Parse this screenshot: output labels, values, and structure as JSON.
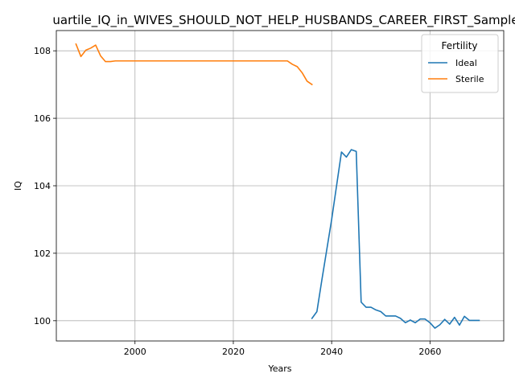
{
  "chart_data": {
    "type": "line",
    "title": "uartile_IQ_in_WIVES_SHOULD_NOT_HELP_HUSBANDS_CAREER_FIRST_Sample",
    "xlabel": "Years",
    "ylabel": "IQ",
    "xlim": [
      1984,
      2075
    ],
    "ylim": [
      99.4,
      108.6
    ],
    "xticks": [
      2000,
      2020,
      2040,
      2060
    ],
    "yticks": [
      100,
      102,
      104,
      106,
      108
    ],
    "grid": true,
    "legend": {
      "title": "Fertility",
      "placement": "top-right"
    },
    "series": [
      {
        "name": "Ideal",
        "color": "#1f77b4",
        "x": [
          2036,
          2037,
          2038,
          2039,
          2040,
          2041,
          2042,
          2043,
          2044,
          2045,
          2046,
          2047,
          2048,
          2049,
          2050,
          2051,
          2052,
          2053,
          2054,
          2055,
          2056,
          2057,
          2058,
          2059,
          2060,
          2061,
          2062,
          2063,
          2064,
          2065,
          2066,
          2067,
          2068,
          2069,
          2070
        ],
        "y": [
          100.07,
          100.27,
          101.2,
          102.1,
          103.0,
          104.0,
          105.0,
          104.85,
          105.07,
          105.02,
          100.55,
          100.4,
          100.4,
          100.32,
          100.27,
          100.14,
          100.14,
          100.14,
          100.07,
          99.94,
          100.02,
          99.94,
          100.05,
          100.05,
          99.94,
          99.78,
          99.88,
          100.04,
          99.9,
          100.1,
          99.87,
          100.13,
          100.01,
          100.01,
          100.01
        ]
      },
      {
        "name": "Sterile",
        "color": "#ff7f0e",
        "x": [
          1988,
          1989,
          1990,
          1991,
          1992,
          1993,
          1994,
          1995,
          1996,
          1997,
          2000,
          2010,
          2020,
          2030,
          2031,
          2032,
          2033,
          2034,
          2035,
          2036
        ],
        "y": [
          108.2,
          107.83,
          108.02,
          108.08,
          108.17,
          107.85,
          107.68,
          107.68,
          107.7,
          107.7,
          107.7,
          107.7,
          107.7,
          107.7,
          107.7,
          107.6,
          107.53,
          107.35,
          107.1,
          107.0
        ]
      }
    ]
  }
}
